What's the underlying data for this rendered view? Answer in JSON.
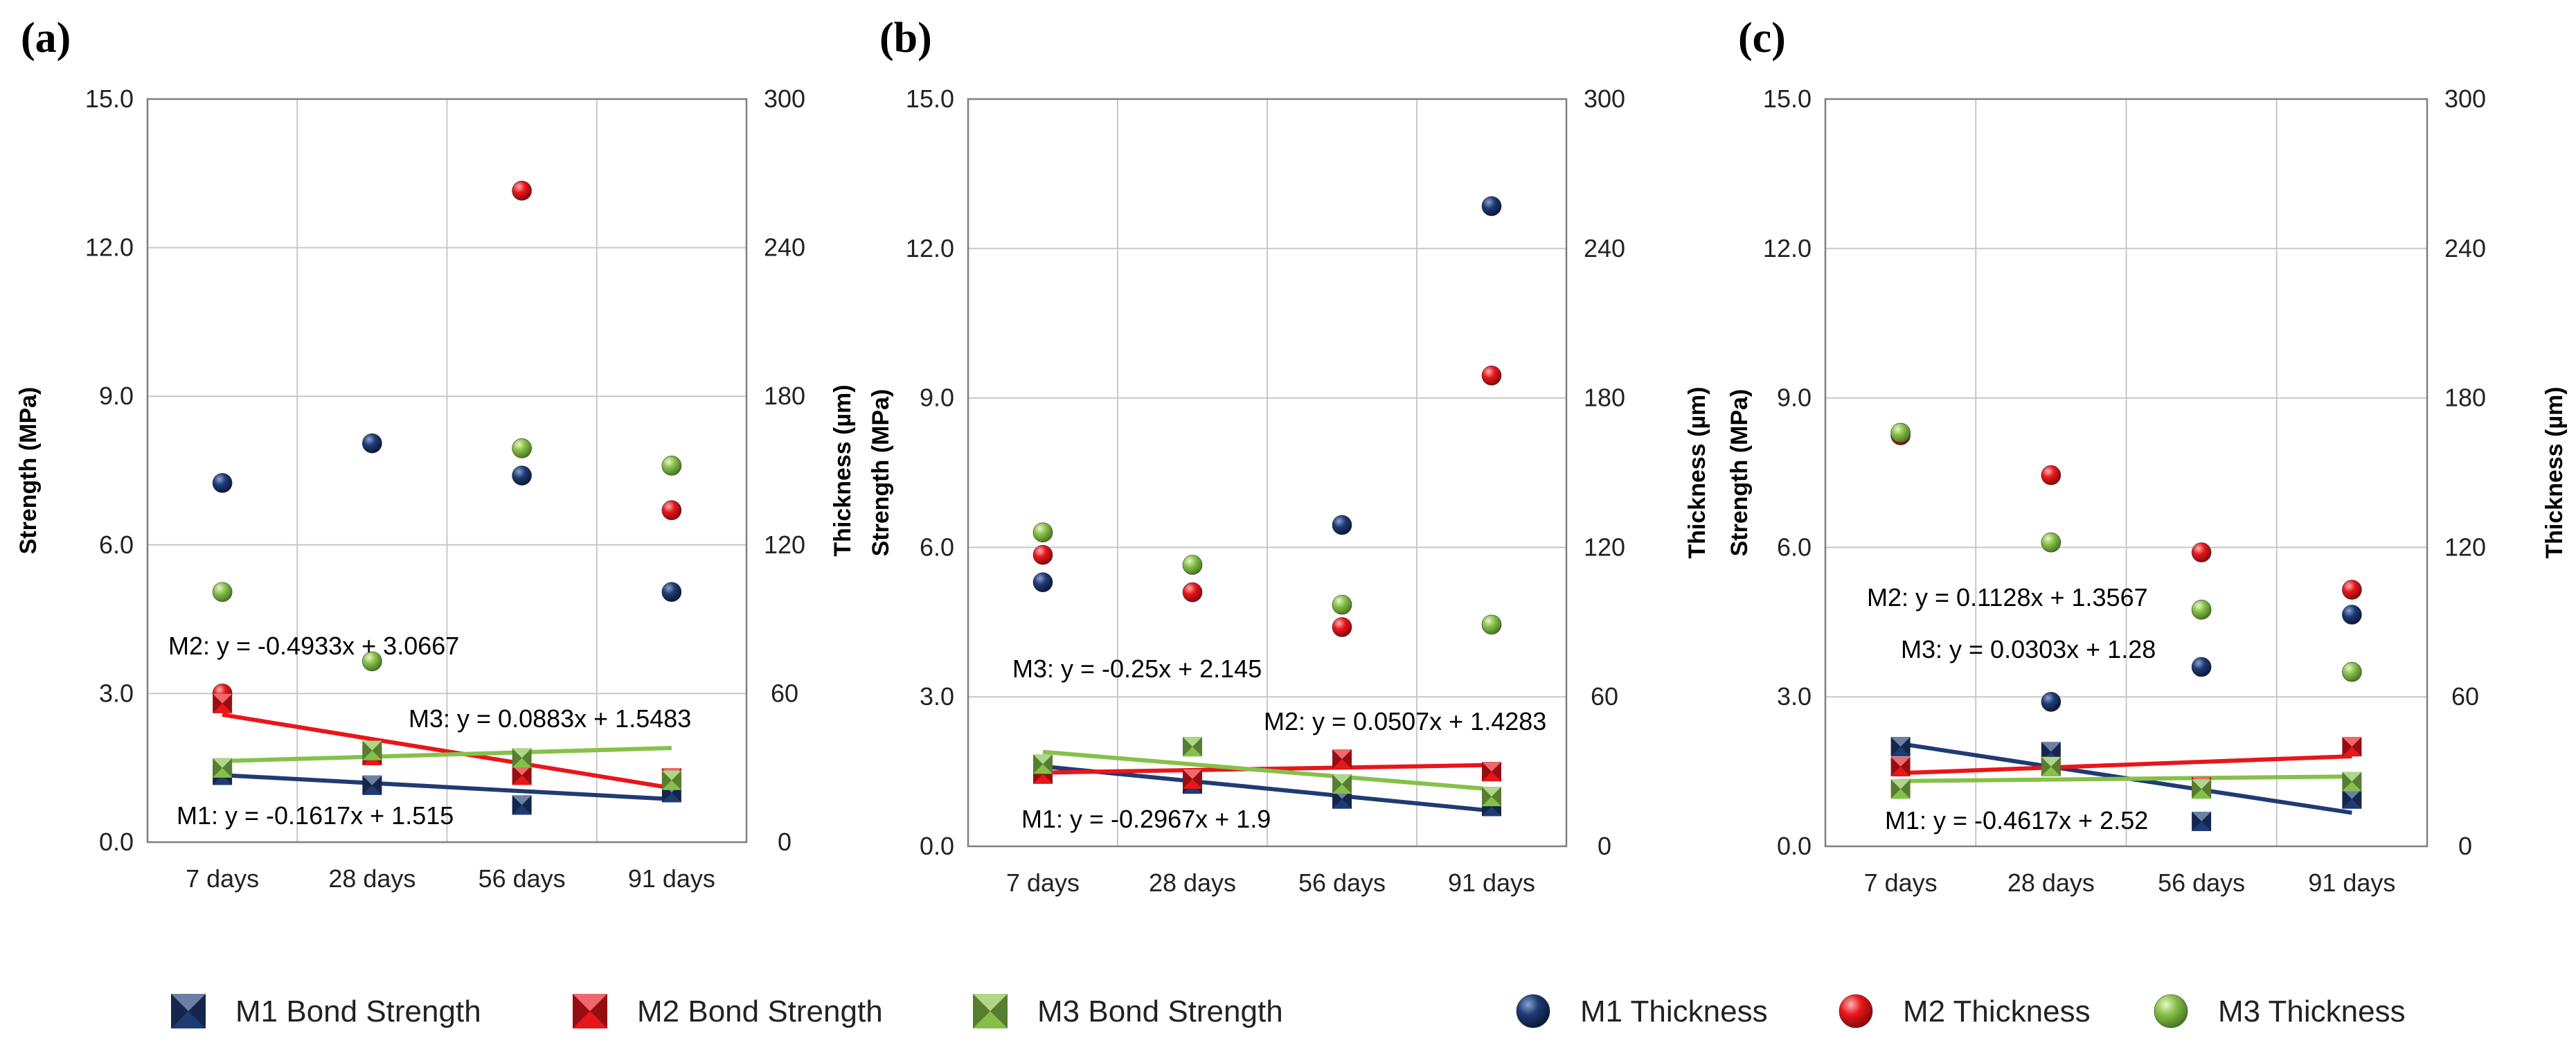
{
  "legend": {
    "items": [
      {
        "label": "M1 Bond Strength",
        "kind": "square",
        "series": "M1"
      },
      {
        "label": "M2 Bond Strength",
        "kind": "square",
        "series": "M2"
      },
      {
        "label": "M3 Bond Strength",
        "kind": "square",
        "series": "M3"
      },
      {
        "label": "M1 Thickness",
        "kind": "circle",
        "series": "M1"
      },
      {
        "label": "M2 Thickness",
        "kind": "circle",
        "series": "M2"
      },
      {
        "label": "M3 Thickness",
        "kind": "circle",
        "series": "M3"
      }
    ]
  },
  "colors": {
    "M1": "#1f3b73",
    "M2": "#e8161b",
    "M3": "#86c04a"
  },
  "chart_data": [
    {
      "panel": "(a)",
      "type": "scatter",
      "categories": [
        "7 days",
        "28 days",
        "56 days",
        "91 days"
      ],
      "ylabel": "Strength (MPa)",
      "y2label": "Thickness (µm)",
      "ylim": [
        0,
        15
      ],
      "yticks": [
        "0.0",
        "3.0",
        "6.0",
        "9.0",
        "12.0",
        "15.0"
      ],
      "y2lim": [
        0,
        300
      ],
      "y2ticks": [
        "0",
        "60",
        "120",
        "180",
        "240",
        "300"
      ],
      "grid": true,
      "bond_strength": [
        {
          "name": "M1 Bond Strength",
          "series": "M1",
          "values": [
            1.35,
            1.15,
            0.75,
            1.0
          ]
        },
        {
          "name": "M2 Bond Strength",
          "series": "M2",
          "values": [
            2.8,
            1.75,
            1.35,
            1.3
          ]
        },
        {
          "name": "M3 Bond Strength",
          "series": "M3",
          "values": [
            1.5,
            1.85,
            1.7,
            1.25
          ]
        }
      ],
      "thickness": [
        {
          "name": "M1 Thickness",
          "series": "M1",
          "values": [
            145,
            161,
            148,
            101
          ]
        },
        {
          "name": "M2 Thickness",
          "series": "M2",
          "values": [
            60,
            null,
            263,
            134
          ]
        },
        {
          "name": "M3 Thickness",
          "series": "M3",
          "values": [
            101,
            73,
            159,
            152
          ]
        }
      ],
      "trendlines": [
        {
          "series": "M1",
          "slope": -0.1617,
          "intercept": 1.515,
          "label": "M1: y = -0.1617x + 1.515"
        },
        {
          "series": "M2",
          "slope": -0.4933,
          "intercept": 3.0667,
          "label": "M2: y = -0.4933x + 3.0667"
        },
        {
          "series": "M3",
          "slope": 0.0883,
          "intercept": 1.5483,
          "label": "M3: y = 0.0883x + 1.5483"
        }
      ]
    },
    {
      "panel": "(b)",
      "type": "scatter",
      "categories": [
        "7 days",
        "28 days",
        "56 days",
        "91 days"
      ],
      "ylabel": "Strength (MPa)",
      "y2label": "Thickness (µm)",
      "ylim": [
        0,
        15
      ],
      "yticks": [
        "0.0",
        "3.0",
        "6.0",
        "9.0",
        "12.0",
        "15.0"
      ],
      "y2lim": [
        0,
        300
      ],
      "y2ticks": [
        "0",
        "60",
        "120",
        "180",
        "240",
        "300"
      ],
      "grid": true,
      "bond_strength": [
        {
          "name": "M1 Bond Strength",
          "series": "M1",
          "values": [
            1.5,
            1.25,
            0.95,
            0.8
          ]
        },
        {
          "name": "M2 Bond Strength",
          "series": "M2",
          "values": [
            1.45,
            1.35,
            1.75,
            1.5
          ]
        },
        {
          "name": "M3 Bond Strength",
          "series": "M3",
          "values": [
            1.65,
            2.0,
            1.25,
            1.0
          ]
        }
      ],
      "thickness": [
        {
          "name": "M1 Thickness",
          "series": "M1",
          "values": [
            106,
            null,
            129,
            257
          ]
        },
        {
          "name": "M2 Thickness",
          "series": "M2",
          "values": [
            117,
            102,
            88,
            189
          ]
        },
        {
          "name": "M3 Thickness",
          "series": "M3",
          "values": [
            126,
            113,
            97,
            89
          ]
        }
      ],
      "trendlines": [
        {
          "series": "M1",
          "slope": -0.2967,
          "intercept": 1.9,
          "label": "M1: y = -0.2967x + 1.9"
        },
        {
          "series": "M2",
          "slope": 0.0507,
          "intercept": 1.4283,
          "label": "M2: y = 0.0507x + 1.4283"
        },
        {
          "series": "M3",
          "slope": -0.25,
          "intercept": 2.145,
          "label": "M3: y = -0.25x + 2.145"
        }
      ]
    },
    {
      "panel": "(c)",
      "type": "scatter",
      "categories": [
        "7 days",
        "28 days",
        "56 days",
        "91 days"
      ],
      "ylabel": "Strength (MPa)",
      "y2label": "Thickness (µm)",
      "ylim": [
        0,
        15
      ],
      "yticks": [
        "0.0",
        "3.0",
        "6.0",
        "9.0",
        "12.0",
        "15.0"
      ],
      "y2lim": [
        0,
        300
      ],
      "y2ticks": [
        "0",
        "60",
        "120",
        "180",
        "240",
        "300"
      ],
      "grid": true,
      "bond_strength": [
        {
          "name": "M1 Bond Strength",
          "series": "M1",
          "values": [
            2.0,
            1.9,
            0.5,
            0.95
          ]
        },
        {
          "name": "M2 Bond Strength",
          "series": "M2",
          "values": [
            1.6,
            1.6,
            1.2,
            2.0
          ]
        },
        {
          "name": "M3 Bond Strength",
          "series": "M3",
          "values": [
            1.15,
            1.6,
            1.15,
            1.3
          ]
        }
      ],
      "thickness": [
        {
          "name": "M1 Thickness",
          "series": "M1",
          "values": [
            null,
            58,
            72,
            93
          ]
        },
        {
          "name": "M2 Thickness",
          "series": "M2",
          "values": [
            165,
            149,
            118,
            103
          ]
        },
        {
          "name": "M3 Thickness",
          "series": "M3",
          "values": [
            166,
            122,
            95,
            70
          ]
        }
      ],
      "trendlines": [
        {
          "series": "M1",
          "slope": -0.4617,
          "intercept": 2.52,
          "label": "M1: y = -0.4617x + 2.52"
        },
        {
          "series": "M2",
          "slope": 0.1128,
          "intercept": 1.3567,
          "label": "M2: y = 0.1128x + 1.3567"
        },
        {
          "series": "M3",
          "slope": 0.0303,
          "intercept": 1.28,
          "label": "M3: y = 0.0303x + 1.28"
        }
      ]
    }
  ]
}
